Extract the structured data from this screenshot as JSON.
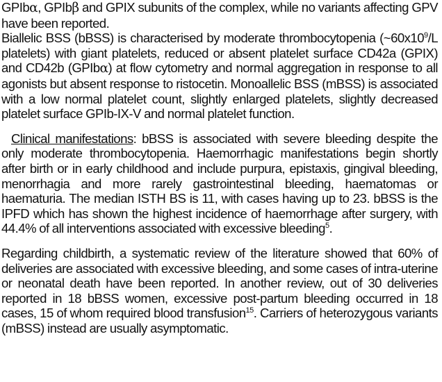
{
  "paragraph_1": {
    "seg_a": "GPIb",
    "alpha": "α",
    "seg_b": ", GPIb",
    "beta": "β",
    "seg_c": " and GPIX subunits of the complex, while no variants affecting GPV have been reported."
  },
  "paragraph_2": {
    "seg_a": "Biallelic BSS (bBSS) is characterised by moderate thrombocytopenia (~60x10",
    "sup_9": "9",
    "seg_b": "/L platelets) with giant platelets, reduced or absent platelet surface CD42a (GPIX) and CD42b (GPIb",
    "alpha": "α",
    "seg_c": ") at flow cytometry and normal aggregation in response to all agonists but absent response to ristocetin. Monoallelic BSS (mBSS) is associated with a low normal platelet count, slightly enlarged platelets, slightly decreased platelet surface GPIb-IX-V and normal platelet function."
  },
  "paragraph_3": {
    "heading": "Clinical manifestations",
    "seg_a": ": bBSS is associated with severe bleeding despite the only moderate thrombocytopenia. Haemorrhagic manifestations begin shortly after birth or in early childhood and include purpura, epistaxis, gingival bleeding, menorrhagia and more rarely gastrointestinal bleeding, haematomas or haematuria. The median ISTH BS is 11, with cases having up to 23. bBSS is the IPFD which has shown the highest incidence of haemorrhage after surgery, with 44.4% of all interventions associated with excessive bleeding",
    "sup_5": "5",
    "seg_b": "."
  },
  "paragraph_4": {
    "seg_a": "Regarding childbirth, a systematic review of the literature showed that 60% of deliveries are associated with excessive bleeding, and some cases of intra-uterine or neonatal death have been reported. In another review, out of 30 deliveries reported in 18 bBSS women, excessive post-partum bleeding occurred in 18 cases, 15 of whom required blood transfusion",
    "sup_15": "15",
    "seg_b": ". Carriers of heterozygous variants (mBSS) instead are usually asymptomatic."
  }
}
